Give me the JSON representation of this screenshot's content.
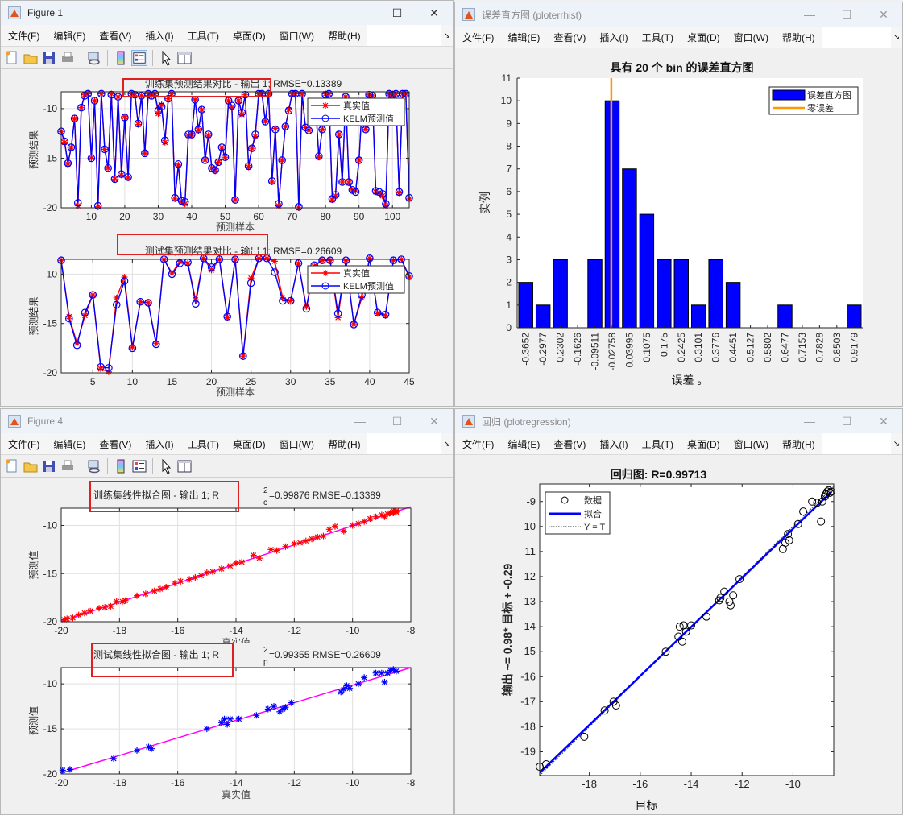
{
  "menu": [
    "文件(F)",
    "编辑(E)",
    "查看(V)",
    "插入(I)",
    "工具(T)",
    "桌面(D)",
    "窗口(W)",
    "帮助(H)"
  ],
  "toolbar_icons": [
    "new-file-icon",
    "open-folder-icon",
    "save-icon",
    "print-icon",
    "link-plot-icon",
    "colorbar-icon",
    "legend-icon",
    "pointer-icon",
    "property-inspector-icon"
  ],
  "window_controls": {
    "minimize": "—",
    "maximize": "☐",
    "close": "✕"
  },
  "windows": {
    "fig1": {
      "title": "Figure 1"
    },
    "errhist": {
      "title": "误差直方图 (ploterrhist)"
    },
    "fig4": {
      "title": "Figure 4"
    },
    "regression": {
      "title": "回归 (plotregression)"
    }
  },
  "colors": {
    "true": "#ff0000",
    "pred": "#0000ff",
    "fit": "#ff00ff",
    "zero": "#ff9900",
    "bar": "#0000ff",
    "highlight_box": "#e02020"
  },
  "chart_data": [
    {
      "id": "train-compare",
      "type": "line",
      "title": "训练集预测结果对比 - 输出 1; RMSE=0.13389",
      "xlabel": "预测样本",
      "ylabel": "预测结果",
      "xlim": [
        1,
        105
      ],
      "ylim": [
        -20,
        -8.3
      ],
      "xticks": [
        10,
        20,
        30,
        40,
        50,
        60,
        70,
        80,
        90,
        100
      ],
      "yticks": [
        -20,
        -15,
        -10
      ],
      "grid": true,
      "legend_position": "upper right",
      "series": [
        {
          "name": "真实值",
          "marker": "*",
          "color": "#ff0000",
          "values": [
            -12.3,
            -13.4,
            -15.6,
            -13.9,
            -11,
            -19.8,
            -9.9,
            -8.6,
            -8.5,
            -15,
            -9.2,
            -19.9,
            -8.5,
            -14.1,
            -16,
            -8.5,
            -17.1,
            -8.8,
            -16.7,
            -10.8,
            -17,
            -8.5,
            -8.5,
            -11.6,
            -8.7,
            -14.5,
            -8.5,
            -8.7,
            -8.5,
            -10.5,
            -9.6,
            -13.4,
            -9,
            -8.5,
            -19.1,
            -15.7,
            -19.4,
            -19.6,
            -12.7,
            -12.7,
            -9.1,
            -12.2,
            -10.1,
            -15.2,
            -12.7,
            -16,
            -16.3,
            -15.4,
            -13.9,
            -14.9,
            -9.2,
            -9.9,
            -19.2,
            -9.2,
            -10.6,
            -8.6,
            -15.9,
            -14,
            -12.8,
            -8.5,
            -8.5,
            -11.3,
            -8.5,
            -17.4,
            -12,
            -19.8,
            -15.2,
            -11.8,
            -10.1,
            -8.5,
            -8.5,
            -20,
            -8.5,
            -11.9,
            -12.2,
            -9.4,
            -9.5,
            -14.9,
            -12.1,
            -8.5,
            -8.5,
            -19.2,
            -18.8,
            -12.6,
            -17.4,
            -8.8,
            -17.5,
            -18.3,
            -18.3,
            -15.2,
            -9.3,
            -12.1,
            -8.6,
            -8.7,
            -18.4,
            -18.5,
            -18.8,
            -19.8,
            -8.5,
            -8.5,
            -8.5,
            -18.5,
            -8.5,
            -8.5,
            -19.1
          ]
        },
        {
          "name": "KELM预测值",
          "marker": "o",
          "color": "#0000ff",
          "values": [
            -12.3,
            -13.3,
            -15.5,
            -13.9,
            -11,
            -19.5,
            -9.9,
            -8.7,
            -8.5,
            -15,
            -9.2,
            -19.8,
            -8.5,
            -14.1,
            -16,
            -8.6,
            -17.1,
            -8.8,
            -16.6,
            -10.9,
            -16.9,
            -8.5,
            -8.6,
            -11.5,
            -8.7,
            -14.5,
            -8.5,
            -8.7,
            -8.5,
            -10.2,
            -9.8,
            -13.2,
            -9,
            -8.5,
            -19,
            -15.6,
            -19.3,
            -19.4,
            -12.6,
            -12.6,
            -9.1,
            -12.1,
            -10.1,
            -15.2,
            -12.6,
            -16,
            -16.2,
            -15.4,
            -13.9,
            -14.9,
            -9.2,
            -9.7,
            -19.2,
            -9.2,
            -10.4,
            -8.6,
            -15.8,
            -14,
            -12.6,
            -8.5,
            -8.5,
            -11.3,
            -8.5,
            -17.3,
            -12.1,
            -19.6,
            -15.2,
            -11.8,
            -10.2,
            -8.5,
            -8.5,
            -19.9,
            -8.5,
            -11.9,
            -12.2,
            -9.4,
            -9.5,
            -14.8,
            -12.1,
            -8.6,
            -8.5,
            -19.1,
            -18.7,
            -12.6,
            -17.4,
            -8.8,
            -17.4,
            -18.2,
            -18.4,
            -15.2,
            -9.3,
            -12.1,
            -8.6,
            -8.7,
            -18.3,
            -18.4,
            -18.6,
            -19.6,
            -8.5,
            -8.6,
            -8.5,
            -18.4,
            -8.5,
            -8.5,
            -19
          ]
        }
      ]
    },
    {
      "id": "test-compare",
      "type": "line",
      "title": "测试集预测结果对比 - 输出 1; RMSE=0.26609",
      "xlabel": "预测样本",
      "ylabel": "预测结果",
      "xlim": [
        1,
        45
      ],
      "ylim": [
        -20,
        -8.5
      ],
      "xticks": [
        5,
        10,
        15,
        20,
        25,
        30,
        35,
        40,
        45
      ],
      "yticks": [
        -20,
        -15,
        -10
      ],
      "grid": true,
      "legend_position": "upper right",
      "series": [
        {
          "name": "真实值",
          "marker": "*",
          "color": "#ff0000",
          "values": [
            -8.6,
            -14.3,
            -17,
            -14.2,
            -12.1,
            -19.6,
            -19.9,
            -12.4,
            -10.3,
            -17.4,
            -12.8,
            -12.9,
            -17,
            -8.5,
            -9.9,
            -8.7,
            -8.9,
            -12.6,
            -8.4,
            -9.6,
            -8.5,
            -14.4,
            -8.5,
            -18.3,
            -10.4,
            -8.4,
            -8.4,
            -8.7,
            -12.4,
            -12.7,
            -8.9,
            -13.3,
            -9.2,
            -8.6,
            -8.6,
            -14.4,
            -8.6,
            -15.1,
            -12.4,
            -8.4,
            -14,
            -14.2,
            -8.6,
            -8.5,
            -10.3
          ]
        },
        {
          "name": "KELM预测值",
          "marker": "o",
          "color": "#0000ff",
          "values": [
            -8.6,
            -14.5,
            -17.2,
            -13.9,
            -12.1,
            -19.4,
            -19.5,
            -13.1,
            -10.7,
            -17.5,
            -12.8,
            -12.9,
            -17.1,
            -8.5,
            -10,
            -8.9,
            -8.8,
            -13,
            -8.4,
            -9.3,
            -8.5,
            -14.3,
            -8.5,
            -18.3,
            -10.9,
            -8.4,
            -8.4,
            -9.8,
            -12.7,
            -12.7,
            -8.9,
            -13.5,
            -9.1,
            -8.6,
            -8.6,
            -14,
            -8.6,
            -15.1,
            -12.1,
            -8.4,
            -13.9,
            -14.1,
            -8.6,
            -8.5,
            -10.2
          ]
        }
      ]
    },
    {
      "id": "error-histogram",
      "type": "bar",
      "title": "具有 20 个 bin 的误差直方图",
      "xlabel": "误差 。",
      "ylabel": "实例",
      "categories": [
        "-0.3652",
        "-0.2977",
        "-0.2302",
        "-0.1626",
        "-0.09511",
        "-0.02758",
        "0.03995",
        "0.1075",
        "0.175",
        "0.2425",
        "0.3101",
        "0.3776",
        "0.4451",
        "0.5127",
        "0.5802",
        "0.6477",
        "0.7153",
        "0.7828",
        "0.8503",
        "0.9179"
      ],
      "values": [
        2,
        1,
        3,
        0,
        3,
        10,
        7,
        5,
        3,
        3,
        1,
        3,
        2,
        0,
        0,
        1,
        0,
        0,
        0,
        1
      ],
      "ylim": [
        0,
        11
      ],
      "yticks": [
        0,
        1,
        2,
        3,
        4,
        5,
        6,
        7,
        8,
        9,
        10,
        11
      ],
      "zero_error_position": 5.45,
      "legend": [
        "误差直方图",
        "零误差"
      ],
      "legend_position": "upper right",
      "grid": false
    },
    {
      "id": "train-fit",
      "type": "scatter",
      "title": "训练集线性拟合图 - 输出 1; R",
      "title_sup": "2",
      "title_sub": "c",
      "title_rest": "=0.99876  RMSE=0.13389",
      "xlabel": "真实值",
      "ylabel": "预测值",
      "xlim": [
        -20,
        -8
      ],
      "ylim": [
        -20,
        -8.2
      ],
      "xticks": [
        -20,
        -18,
        -16,
        -14,
        -12,
        -10,
        -8
      ],
      "yticks": [
        -20,
        -15,
        -10
      ],
      "marker": "*",
      "marker_color": "#ff0000",
      "line_color": "#ff00ff",
      "grid": true,
      "points_x": [
        -19.9,
        -19.8,
        -19.6,
        -19.4,
        -19.2,
        -19,
        -18.7,
        -18.5,
        -18.3,
        -18.1,
        -17.9,
        -17.8,
        -17.4,
        -17.1,
        -16.8,
        -16.6,
        -16.4,
        -16.1,
        -15.9,
        -15.6,
        -15.4,
        -15.2,
        -15,
        -14.8,
        -14.5,
        -14.2,
        -14,
        -13.8,
        -13.4,
        -13.2,
        -12.8,
        -12.6,
        -12.3,
        -12,
        -11.8,
        -11.6,
        -11.4,
        -11.2,
        -11,
        -10.8,
        -10.6,
        -10.3,
        -10,
        -9.8,
        -9.6,
        -9.4,
        -9.2,
        -9,
        -8.9,
        -8.8,
        -8.7,
        -8.6,
        -8.6,
        -8.5,
        -8.5
      ],
      "points_y": [
        -19.8,
        -19.7,
        -19.6,
        -19.3,
        -19.1,
        -18.9,
        -18.6,
        -18.5,
        -18.4,
        -17.9,
        -17.9,
        -17.8,
        -17.3,
        -17.1,
        -16.8,
        -16.6,
        -16.4,
        -16,
        -15.8,
        -15.6,
        -15.4,
        -15.2,
        -14.9,
        -14.8,
        -14.5,
        -14.2,
        -13.9,
        -13.8,
        -13.1,
        -13.4,
        -12.5,
        -12.6,
        -12.2,
        -11.9,
        -11.8,
        -11.6,
        -11.4,
        -11.2,
        -11.1,
        -10.4,
        -10.1,
        -10.6,
        -10,
        -9.8,
        -9.6,
        -9.3,
        -9.1,
        -8.9,
        -9.1,
        -8.8,
        -8.7,
        -8.5,
        -8.7,
        -8.5,
        -8.6
      ],
      "fit_line": [
        [
          -20,
          -19.95
        ],
        [
          -8,
          -8.05
        ]
      ]
    },
    {
      "id": "test-fit",
      "type": "scatter",
      "title": "测试集线性拟合图 - 输出 1; R",
      "title_sup": "2",
      "title_sub": "p",
      "title_rest": "=0.99355  RMSE=0.26609",
      "xlabel": "真实值",
      "ylabel": "预测值",
      "xlim": [
        -20,
        -8
      ],
      "ylim": [
        -20,
        -8.2
      ],
      "xticks": [
        -20,
        -18,
        -16,
        -14,
        -12,
        -10,
        -8
      ],
      "yticks": [
        -20,
        -15,
        -10
      ],
      "marker": "*",
      "marker_color": "#0000ff",
      "line_color": "#ff00ff",
      "grid": true,
      "points_x": [
        -19.95,
        -19.7,
        -18.2,
        -17.4,
        -17,
        -16.9,
        -15,
        -14.5,
        -14.4,
        -14.3,
        -14.2,
        -13.9,
        -13.3,
        -12.9,
        -12.7,
        -12.5,
        -12.4,
        -12.3,
        -12.1,
        -10.4,
        -10.3,
        -10.2,
        -10.1,
        -9.8,
        -9.6,
        -9.2,
        -9,
        -8.9,
        -8.8,
        -8.7,
        -8.6,
        -8.5
      ],
      "points_y": [
        -19.6,
        -19.5,
        -18.3,
        -17.4,
        -17,
        -17.2,
        -15,
        -14.3,
        -13.9,
        -14.5,
        -13.9,
        -13.9,
        -13.5,
        -12.8,
        -12.5,
        -13.1,
        -12.8,
        -12.6,
        -12.1,
        -10.9,
        -10.6,
        -10.2,
        -10.5,
        -10,
        -9.3,
        -8.8,
        -8.8,
        -9.8,
        -8.8,
        -8.5,
        -8.4,
        -8.6
      ],
      "fit_line": [
        [
          -20,
          -19.9
        ],
        [
          -8,
          -8.2
        ]
      ]
    },
    {
      "id": "regression",
      "type": "scatter",
      "title": "回归图: R=0.99713",
      "xlabel": "目标",
      "ylabel": "输出 ~= 0.98* 目标 + -0.29",
      "xlim": [
        -19.95,
        -8.4
      ],
      "ylim": [
        -19.95,
        -8.3
      ],
      "xticks": [
        -18,
        -16,
        -14,
        -12,
        -10
      ],
      "yticks": [
        -19,
        -18,
        -17,
        -16,
        -15,
        -14,
        -13,
        -12,
        -11,
        -10,
        -9
      ],
      "grid": false,
      "legend": [
        "数据",
        "拟合",
        "Y = T"
      ],
      "legend_position": "upper left",
      "points_x": [
        -19.95,
        -19.7,
        -18.2,
        -17.4,
        -17.05,
        -16.95,
        -15,
        -14.5,
        -14.45,
        -14.35,
        -14.3,
        -14.2,
        -14,
        -13.4,
        -12.9,
        -12.85,
        -12.7,
        -12.5,
        -12.45,
        -12.35,
        -12.1,
        -10.4,
        -10.3,
        -10.2,
        -10.15,
        -9.8,
        -9.6,
        -9.25,
        -9.05,
        -8.9,
        -8.85,
        -8.75,
        -8.7,
        -8.65,
        -8.6,
        -8.55,
        -8.5
      ],
      "points_y": [
        -19.6,
        -19.5,
        -18.4,
        -17.35,
        -17.0,
        -17.15,
        -15.0,
        -14.4,
        -14.0,
        -14.6,
        -13.95,
        -14.2,
        -13.95,
        -13.6,
        -12.95,
        -12.85,
        -12.6,
        -13.0,
        -13.15,
        -12.75,
        -12.1,
        -10.9,
        -10.65,
        -10.3,
        -10.55,
        -9.9,
        -9.4,
        -9.0,
        -9.05,
        -9.8,
        -9.0,
        -8.8,
        -8.7,
        -8.6,
        -8.55,
        -8.65,
        -8.6
      ],
      "fit_line": [
        [
          -19.95,
          -19.84
        ],
        [
          -8.5,
          -8.62
        ]
      ]
    }
  ]
}
